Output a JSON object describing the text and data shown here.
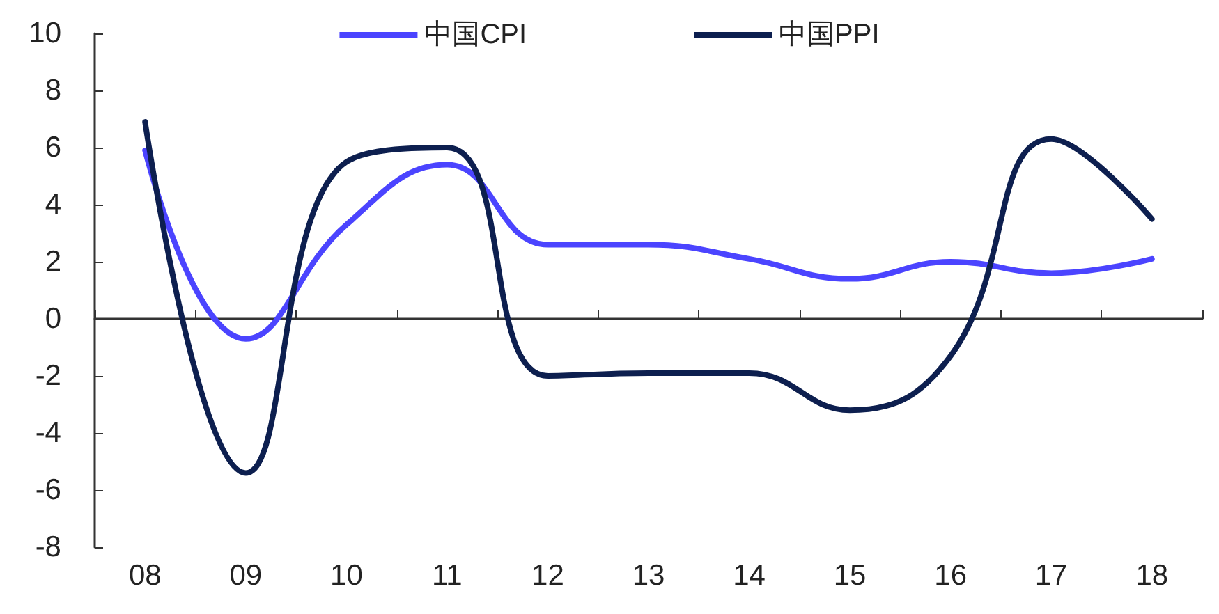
{
  "chart_data": {
    "type": "line",
    "categories": [
      "08",
      "09",
      "10",
      "11",
      "12",
      "13",
      "14",
      "15",
      "16",
      "17",
      "18"
    ],
    "series": [
      {
        "name": "中国CPI",
        "color": "#4b44ff",
        "values": [
          5.9,
          -0.7,
          3.3,
          5.4,
          2.6,
          2.6,
          2.1,
          1.4,
          2.0,
          1.6,
          2.1
        ]
      },
      {
        "name": "中国PPI",
        "color": "#0d1f4f",
        "values": [
          6.9,
          -5.4,
          5.5,
          6.0,
          -2.0,
          -1.9,
          -1.9,
          -3.2,
          -1.3,
          6.3,
          3.5
        ]
      }
    ],
    "ylim": [
      -8,
      10
    ],
    "yticks": [
      -8,
      -6,
      -4,
      -2,
      0,
      2,
      4,
      6,
      8,
      10
    ],
    "legend": "top",
    "marker": "none",
    "line_style": "solid"
  }
}
